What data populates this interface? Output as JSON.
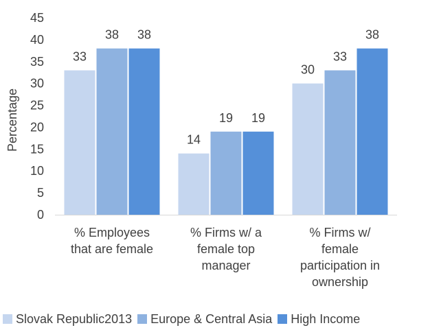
{
  "chart_data": {
    "type": "bar",
    "title": "",
    "xlabel": "",
    "ylabel": "Percentage",
    "ylim": [
      0,
      45
    ],
    "ytick_step": 5,
    "yticks": [
      "0",
      "5",
      "10",
      "15",
      "20",
      "25",
      "30",
      "35",
      "40",
      "45"
    ],
    "grid": false,
    "legend_position": "bottom",
    "categories": [
      [
        "% Employees",
        "that are female"
      ],
      [
        "% Firms w/ a",
        "female top",
        "manager"
      ],
      [
        "% Firms w/",
        "female",
        "participation in",
        "ownership"
      ]
    ],
    "series": [
      {
        "name": "Slovak Republic2013",
        "color": "#c5d6ef",
        "values": [
          33,
          14,
          30
        ],
        "labels": [
          "33",
          "14",
          "30"
        ]
      },
      {
        "name": "Europe & Central Asia",
        "color": "#8eb2e0",
        "values": [
          38,
          19,
          33
        ],
        "labels": [
          "38",
          "19",
          "33"
        ]
      },
      {
        "name": "High Income",
        "color": "#5590d9",
        "values": [
          38,
          19,
          38
        ],
        "labels": [
          "38",
          "19",
          "38"
        ]
      }
    ]
  }
}
